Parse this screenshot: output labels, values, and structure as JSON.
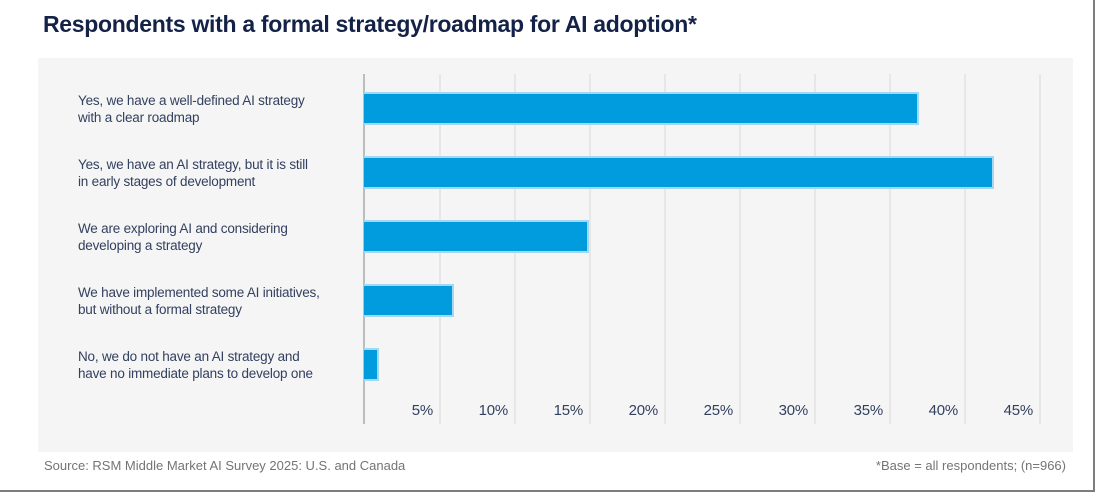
{
  "title": "Respondents with a formal strategy/roadmap for AI adoption*",
  "footer": {
    "source": "Source: RSM Middle Market AI Survey 2025: U.S. and Canada",
    "note": "*Base = all respondents; (n=966)"
  },
  "colors": {
    "title_text": "#152248",
    "label_text": "#33405f",
    "panel_bg": "#f5f5f5",
    "gridline": "#e7e7e8",
    "axis_line": "#bcbdbe",
    "bar": "#009CDE",
    "bar_edge": "#a6d7f2",
    "footer_text": "#737476",
    "frame_line": "#7d7d7d"
  },
  "chart_data": {
    "type": "bar",
    "orientation": "horizontal",
    "title": "Respondents with a formal strategy/roadmap for AI adoption*",
    "categories": [
      "Yes, we have a well-defined AI strategy\nwith a clear roadmap",
      "Yes, we have an AI strategy, but it is still\nin early stages of development",
      "We are exploring AI and considering\ndeveloping a strategy",
      "We have implemented some AI initiatives,\nbut without a formal strategy",
      "No, we do not have an AI strategy and\nhave no immediate plans to develop one"
    ],
    "values": [
      37,
      42,
      15,
      6,
      1
    ],
    "unit": "%",
    "xlabel": "",
    "ylabel": "",
    "xlim": [
      0,
      47
    ],
    "x_tick_step": 5,
    "x_ticks": [
      "5%",
      "10%",
      "15%",
      "20%",
      "25%",
      "30%",
      "35%",
      "40%",
      "45%"
    ],
    "grid": "vertical",
    "legend": "none"
  }
}
